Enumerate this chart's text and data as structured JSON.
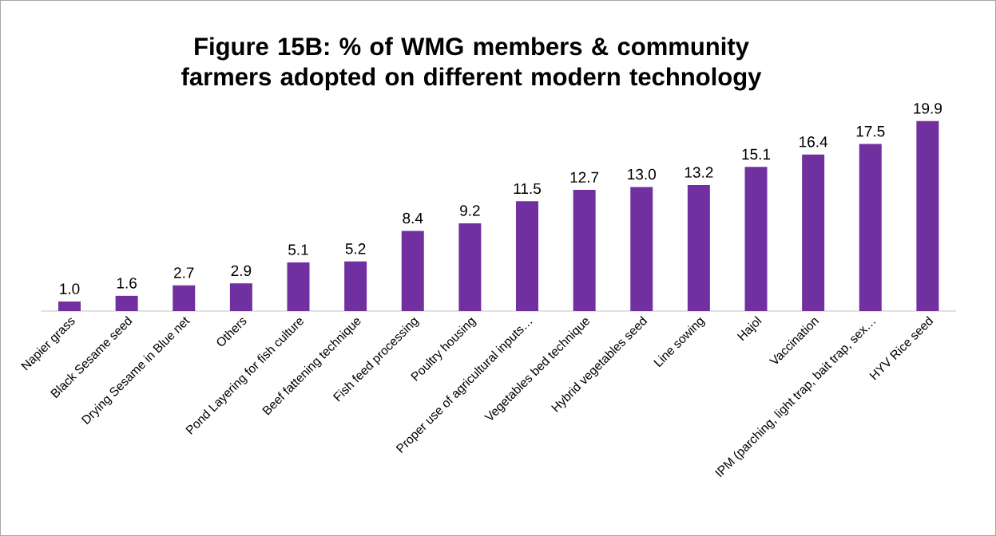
{
  "chart_data": {
    "type": "bar",
    "title": "Figure 15B: % of WMG members & community farmers adopted on different modern technology",
    "categories": [
      "Napier grass",
      "Black Sesame seed",
      "Drying Sesame in Blue net",
      "Others",
      "Pond Layering for fish culture",
      "Beef fattening technique",
      "Fish feed processing",
      "Poultry housing",
      "Proper use of agricultural inputs…",
      "Vegetables bed technique",
      "Hybrid vegetables seed",
      "Line sowing",
      "Hajol",
      "Vaccination",
      "IPM (parching, light trap, bait trap, sex…",
      "HYV Rice seed"
    ],
    "values": [
      1.0,
      1.6,
      2.7,
      2.9,
      5.1,
      5.2,
      8.4,
      9.2,
      11.5,
      12.7,
      13.0,
      13.2,
      15.1,
      16.4,
      17.5,
      19.9
    ],
    "value_labels": [
      "1.0",
      "1.6",
      "2.7",
      "2.9",
      "5.1",
      "5.2",
      "8.4",
      "9.2",
      "11.5",
      "12.7",
      "13.0",
      "13.2",
      "15.1",
      "16.4",
      "17.5",
      "19.9"
    ],
    "color": "#7030a0",
    "tick_labels": "x",
    "grid": false
  }
}
